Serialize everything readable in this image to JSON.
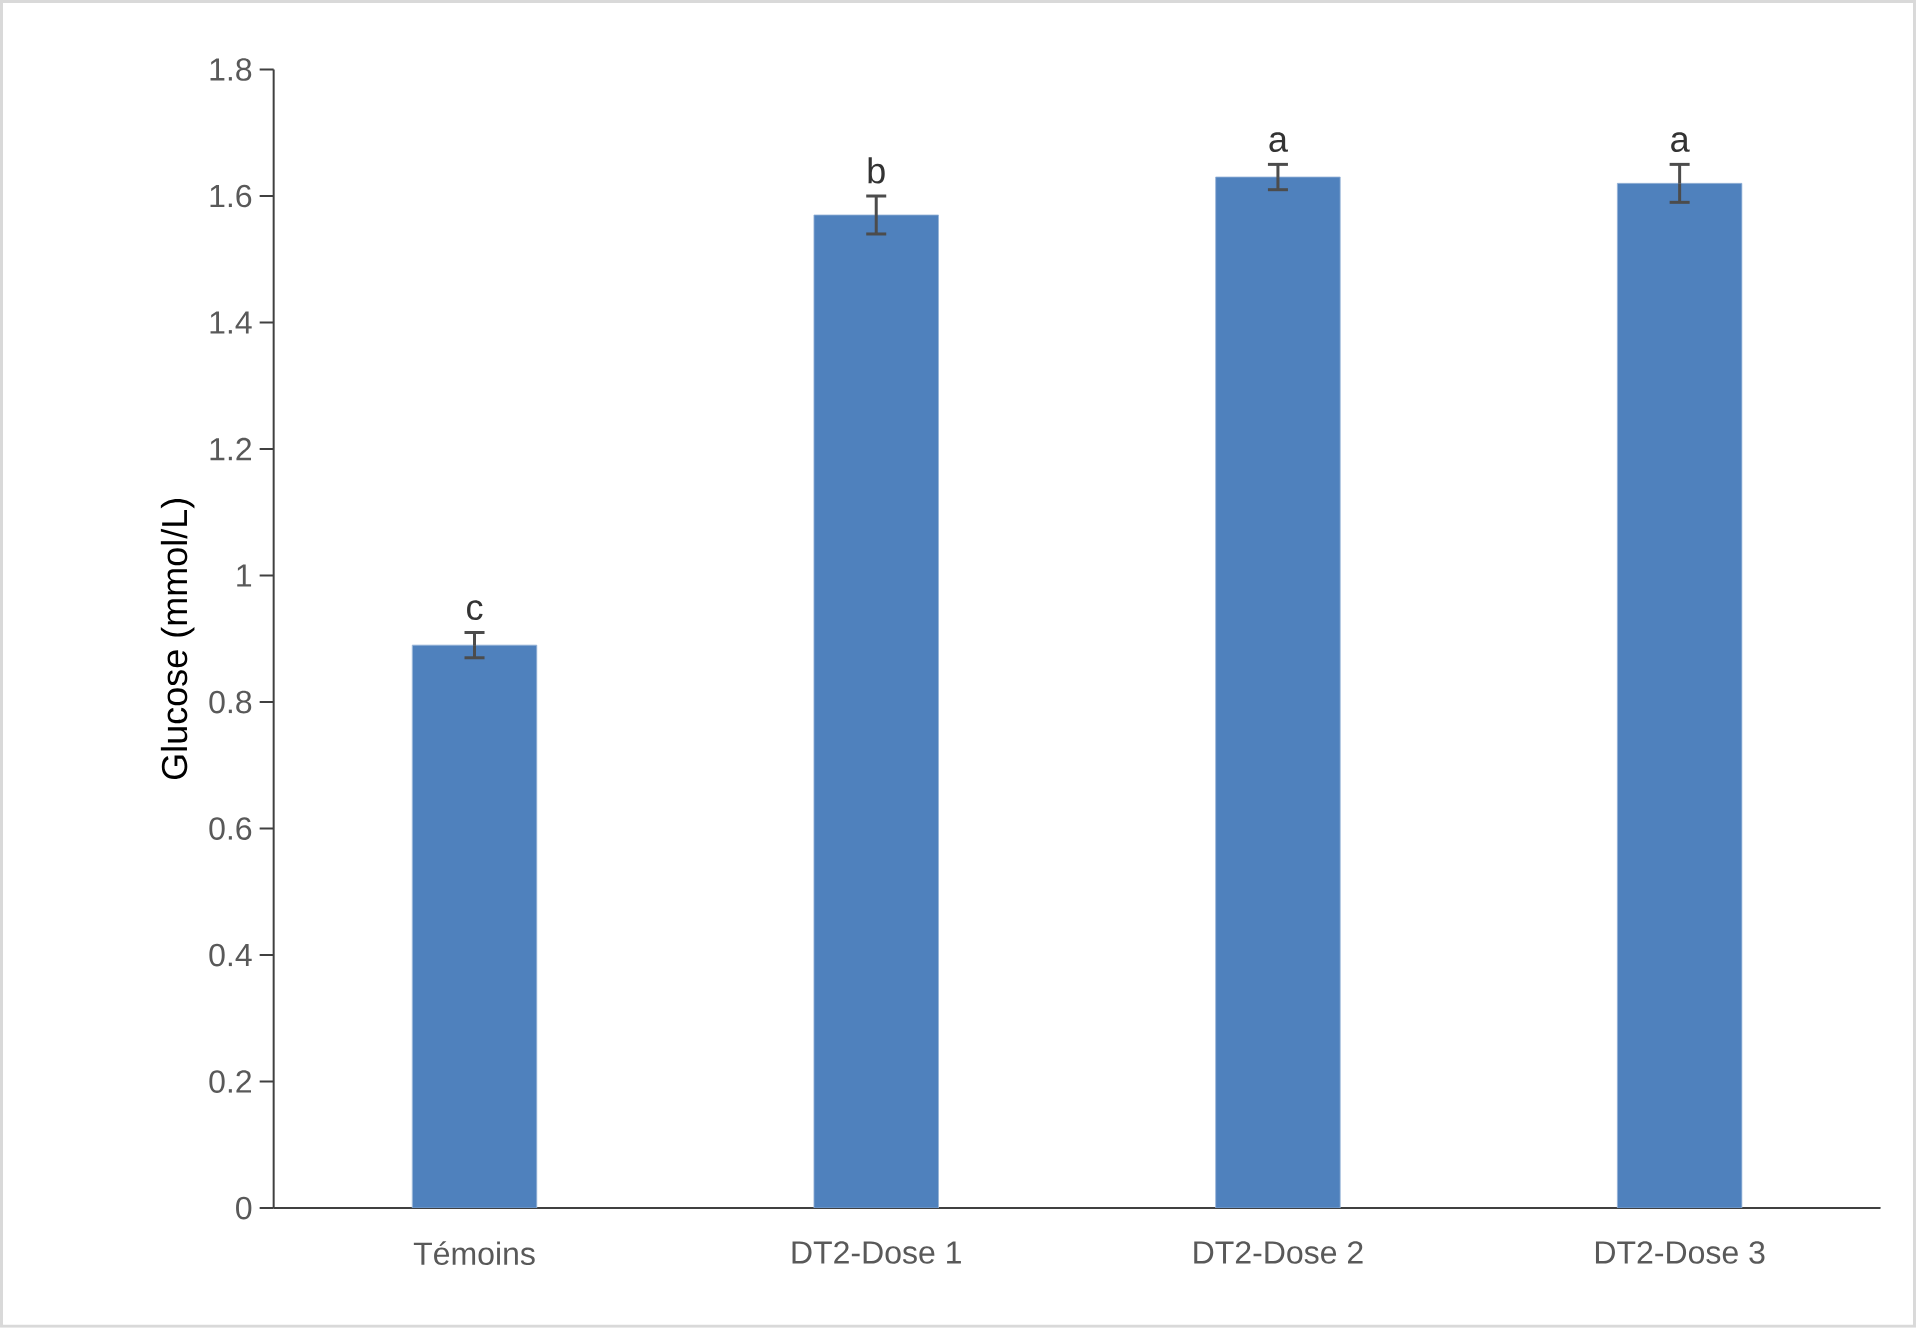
{
  "chart_data": {
    "type": "bar",
    "ylabel": "Glucose (mmol/L)",
    "categories": [
      "Témoins",
      "DT2-Dose 1",
      "DT2-Dose 2",
      "DT2-Dose 3"
    ],
    "values": [
      0.89,
      1.57,
      1.63,
      1.62
    ],
    "errors": [
      0.02,
      0.03,
      0.02,
      0.03
    ],
    "color": "#4f81bd",
    "ylim": [
      0,
      1.8
    ],
    "yticks": [
      0,
      0.2,
      0.4,
      0.6,
      0.8,
      1,
      1.2,
      1.4,
      1.6,
      1.8
    ],
    "grid": false,
    "annotations": [
      {
        "text": "c",
        "x": "Témoins",
        "y": 0.91
      },
      {
        "text": "b",
        "x": "DT2-Dose 1",
        "y": 1.6
      },
      {
        "text": "a",
        "x": "DT2-Dose 2",
        "y": 1.65
      },
      {
        "text": "a",
        "x": "DT2-Dose 3",
        "y": 1.65
      }
    ]
  }
}
